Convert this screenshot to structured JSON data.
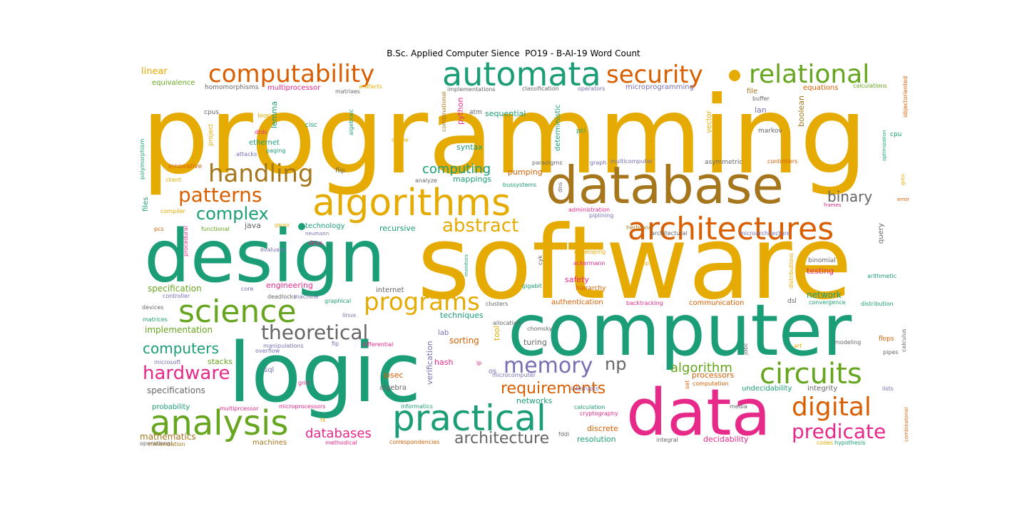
{
  "title": "B.Sc. Applied Computer Sience  PO19 - B-AI-19 Word Count",
  "colors": {
    "yellow": "#e6ab02",
    "teal": "#1b9e77",
    "green": "#66a61e",
    "orange": "#d95f02",
    "pink": "#e7298a",
    "purple": "#7570b3",
    "brown": "#a6761d",
    "gray": "#666666"
  },
  "words": [
    {
      "text": "programming",
      "color": "yellow"
    },
    {
      "text": "software",
      "color": "yellow"
    },
    {
      "text": "computer",
      "color": "teal"
    },
    {
      "text": "logic",
      "color": "teal"
    },
    {
      "text": "design",
      "color": "teal"
    },
    {
      "text": "database",
      "color": "brown"
    },
    {
      "text": "data",
      "color": "pink"
    },
    {
      "text": "algorithms",
      "color": "yellow"
    },
    {
      "text": "automata",
      "color": "teal"
    },
    {
      "text": "security",
      "color": "orange"
    },
    {
      "text": "relational",
      "color": "green"
    },
    {
      "text": "computability",
      "color": "orange"
    },
    {
      "text": "architectures",
      "color": "orange"
    },
    {
      "text": "science",
      "color": "green"
    },
    {
      "text": "analysis",
      "color": "green"
    },
    {
      "text": "practical",
      "color": "teal"
    },
    {
      "text": "circuits",
      "color": "green"
    },
    {
      "text": "handling",
      "color": "brown"
    },
    {
      "text": "patterns",
      "color": "orange"
    },
    {
      "text": "theoretical",
      "color": "gray"
    },
    {
      "text": "programs",
      "color": "yellow"
    },
    {
      "text": "memory",
      "color": "purple"
    },
    {
      "text": "digital",
      "color": "orange"
    },
    {
      "text": "predicate",
      "color": "pink"
    },
    {
      "text": "hardware",
      "color": "pink"
    },
    {
      "text": "complex",
      "color": "teal"
    },
    {
      "text": "abstract",
      "color": "yellow"
    },
    {
      "text": "computers",
      "color": "teal"
    },
    {
      "text": "binary",
      "color": "gray"
    },
    {
      "text": "np",
      "color": "gray"
    },
    {
      "text": "algorithm",
      "color": "green"
    },
    {
      "text": "requirements",
      "color": "orange"
    },
    {
      "text": "architecture",
      "color": "gray"
    },
    {
      "text": "databases",
      "color": "pink"
    },
    {
      "text": "computing",
      "color": "teal"
    },
    {
      "text": "linear",
      "color": "yellow"
    },
    {
      "text": "equivalence",
      "color": "green"
    },
    {
      "text": "homomorphisms",
      "color": "gray"
    },
    {
      "text": "multiprocessor",
      "color": "pink"
    },
    {
      "text": "matrixes",
      "color": "gray"
    },
    {
      "text": "artifacts",
      "color": "yellow"
    },
    {
      "text": "implementations",
      "color": "gray"
    },
    {
      "text": "classification",
      "color": "gray"
    },
    {
      "text": "operators",
      "color": "purple"
    },
    {
      "text": "microprogramming",
      "color": "purple"
    },
    {
      "text": "file",
      "color": "brown"
    },
    {
      "text": "equations",
      "color": "orange"
    },
    {
      "text": "calculations",
      "color": "green"
    },
    {
      "text": "buffer",
      "color": "gray"
    },
    {
      "text": "lan",
      "color": "purple"
    },
    {
      "text": "cpus",
      "color": "gray"
    },
    {
      "text": "loops",
      "color": "yellow"
    },
    {
      "text": "lemma",
      "color": "teal"
    },
    {
      "text": "cisc",
      "color": "teal"
    },
    {
      "text": "algebraic",
      "color": "teal"
    },
    {
      "text": "python",
      "color": "pink"
    },
    {
      "text": "atm",
      "color": "gray"
    },
    {
      "text": "sequential",
      "color": "teal"
    },
    {
      "text": "pci",
      "color": "teal"
    },
    {
      "text": "markov",
      "color": "gray"
    },
    {
      "text": "boolean",
      "color": "brown"
    },
    {
      "text": "cpu",
      "color": "teal"
    },
    {
      "text": "objectoriented",
      "color": "orange"
    },
    {
      "text": "ethernet",
      "color": "teal"
    },
    {
      "text": "dtds",
      "color": "pink"
    },
    {
      "text": "project",
      "color": "yellow"
    },
    {
      "text": "paging",
      "color": "teal"
    },
    {
      "text": "attacks",
      "color": "purple"
    },
    {
      "text": "syntax",
      "color": "teal"
    },
    {
      "text": "cache",
      "color": "yellow"
    },
    {
      "text": "combinational",
      "color": "brown"
    },
    {
      "text": "deterministic",
      "color": "teal"
    },
    {
      "text": "vector",
      "color": "yellow"
    },
    {
      "text": "polymorphism",
      "color": "teal"
    },
    {
      "text": "innovative",
      "color": "orange"
    },
    {
      "text": "flip",
      "color": "gray"
    },
    {
      "text": "mappings",
      "color": "teal"
    },
    {
      "text": "pumping",
      "color": "orange"
    },
    {
      "text": "paradigms",
      "color": "gray"
    },
    {
      "text": "graph",
      "color": "purple"
    },
    {
      "text": "multicomputer",
      "color": "purple"
    },
    {
      "text": "asymmetric",
      "color": "gray"
    },
    {
      "text": "controllers",
      "color": "orange"
    },
    {
      "text": "optimization",
      "color": "teal"
    },
    {
      "text": "goto",
      "color": "yellow"
    },
    {
      "text": "files",
      "color": "teal"
    },
    {
      "text": "client",
      "color": "yellow"
    },
    {
      "text": "analyze",
      "color": "gray"
    },
    {
      "text": "bussystems",
      "color": "teal"
    },
    {
      "text": "dns",
      "color": "gray"
    },
    {
      "text": "frames",
      "color": "pink"
    },
    {
      "text": "error",
      "color": "orange"
    },
    {
      "text": "compiler",
      "color": "yellow"
    },
    {
      "text": "administration",
      "color": "pink"
    },
    {
      "text": "piplining",
      "color": "purple"
    },
    {
      "text": "pcs",
      "color": "orange"
    },
    {
      "text": "functional",
      "color": "green"
    },
    {
      "text": "java",
      "color": "gray"
    },
    {
      "text": "gauss",
      "color": "yellow"
    },
    {
      "text": "technology",
      "color": "teal"
    },
    {
      "text": "neumann",
      "color": "purple"
    },
    {
      "text": "recursive",
      "color": "teal"
    },
    {
      "text": "herbrand",
      "color": "brown"
    },
    {
      "text": "architectural",
      "color": "gray"
    },
    {
      "text": "microarchitecture",
      "color": "purple"
    },
    {
      "text": "query",
      "color": "gray"
    },
    {
      "text": "procedural",
      "color": "pink"
    },
    {
      "text": "dma",
      "color": "pink"
    },
    {
      "text": "evaluate",
      "color": "purple"
    },
    {
      "text": "developing",
      "color": "yellow"
    },
    {
      "text": "monitors",
      "color": "teal"
    },
    {
      "text": "cyk",
      "color": "gray"
    },
    {
      "text": "ackermann",
      "color": "pink"
    },
    {
      "text": "loop",
      "color": "yellow"
    },
    {
      "text": "binomial",
      "color": "gray"
    },
    {
      "text": "distributions",
      "color": "yellow"
    },
    {
      "text": "testing",
      "color": "pink"
    },
    {
      "text": "arithmetic",
      "color": "teal"
    },
    {
      "text": "safety",
      "color": "pink"
    },
    {
      "text": "hierarchy",
      "color": "orange"
    },
    {
      "text": "gigabit",
      "color": "teal"
    },
    {
      "text": "specification",
      "color": "green"
    },
    {
      "text": "core",
      "color": "purple"
    },
    {
      "text": "engineering",
      "color": "pink"
    },
    {
      "text": "deadlocks",
      "color": "gray"
    },
    {
      "text": "internet",
      "color": "gray"
    },
    {
      "text": "machine",
      "color": "purple"
    },
    {
      "text": "graphical",
      "color": "teal"
    },
    {
      "text": "authentication",
      "color": "orange"
    },
    {
      "text": "clusters",
      "color": "gray"
    },
    {
      "text": "backtracking",
      "color": "pink"
    },
    {
      "text": "communication",
      "color": "orange"
    },
    {
      "text": "network",
      "color": "teal"
    },
    {
      "text": "dsl",
      "color": "gray"
    },
    {
      "text": "convergence",
      "color": "teal"
    },
    {
      "text": "distribution",
      "color": "teal"
    },
    {
      "text": "controller",
      "color": "purple"
    },
    {
      "text": "devices",
      "color": "gray"
    },
    {
      "text": "matrices",
      "color": "teal"
    },
    {
      "text": "techniques",
      "color": "teal"
    },
    {
      "text": "linux",
      "color": "purple"
    },
    {
      "text": "allocation",
      "color": "gray"
    },
    {
      "text": "implementation",
      "color": "green"
    },
    {
      "text": "lab",
      "color": "purple"
    },
    {
      "text": "chomsky",
      "color": "gray"
    },
    {
      "text": "manipulations",
      "color": "purple"
    },
    {
      "text": "fip",
      "color": "purple"
    },
    {
      "text": "differential",
      "color": "pink"
    },
    {
      "text": "sorting",
      "color": "orange"
    },
    {
      "text": "tool",
      "color": "yellow"
    },
    {
      "text": "turing",
      "color": "gray"
    },
    {
      "text": "jdbc",
      "color": "gray"
    },
    {
      "text": "art",
      "color": "yellow"
    },
    {
      "text": "modeling",
      "color": "gray"
    },
    {
      "text": "flops",
      "color": "orange"
    },
    {
      "text": "calculus",
      "color": "gray"
    },
    {
      "text": "pipes",
      "color": "gray"
    },
    {
      "text": "overflow",
      "color": "purple"
    },
    {
      "text": "microsoft",
      "color": "purple"
    },
    {
      "text": "stacks",
      "color": "green"
    },
    {
      "text": "hash",
      "color": "pink"
    },
    {
      "text": "verification",
      "color": "purple"
    },
    {
      "text": "ip",
      "color": "pink"
    },
    {
      "text": "os",
      "color": "purple"
    },
    {
      "text": "microcomputer",
      "color": "purple"
    },
    {
      "text": "processors",
      "color": "orange"
    },
    {
      "text": "sql",
      "color": "purple"
    },
    {
      "text": "ipsec",
      "color": "orange"
    },
    {
      "text": "grid",
      "color": "pink"
    },
    {
      "text": "algebra",
      "color": "gray"
    },
    {
      "text": "sat",
      "color": "orange"
    },
    {
      "text": "computation",
      "color": "orange"
    },
    {
      "text": "interrupts",
      "color": "purple"
    },
    {
      "text": "undecidability",
      "color": "teal"
    },
    {
      "text": "integrity",
      "color": "gray"
    },
    {
      "text": "lists",
      "color": "purple"
    },
    {
      "text": "specifications",
      "color": "gray"
    },
    {
      "text": "networks",
      "color": "teal"
    },
    {
      "text": "probability",
      "color": "teal"
    },
    {
      "text": "multiprcessor",
      "color": "pink"
    },
    {
      "text": "microprocessors",
      "color": "pink"
    },
    {
      "text": "informatics",
      "color": "teal"
    },
    {
      "text": "calculation",
      "color": "teal"
    },
    {
      "text": "media",
      "color": "gray"
    },
    {
      "text": "cryptography",
      "color": "pink"
    },
    {
      "text": "fx",
      "color": "yellow"
    },
    {
      "text": "discrete",
      "color": "orange"
    },
    {
      "text": "mathematics",
      "color": "brown"
    },
    {
      "text": "operational",
      "color": "gray"
    },
    {
      "text": "methodical",
      "color": "pink"
    },
    {
      "text": "fddi",
      "color": "gray"
    },
    {
      "text": "resolution",
      "color": "teal"
    },
    {
      "text": "integral",
      "color": "gray"
    },
    {
      "text": "decidability",
      "color": "pink"
    },
    {
      "text": "codes",
      "color": "yellow"
    },
    {
      "text": "hypothesis",
      "color": "teal"
    },
    {
      "text": "combinatorial",
      "color": "orange"
    },
    {
      "text": "minimization",
      "color": "brown"
    },
    {
      "text": "machines",
      "color": "brown"
    },
    {
      "text": "correspondencies",
      "color": "orange"
    }
  ]
}
